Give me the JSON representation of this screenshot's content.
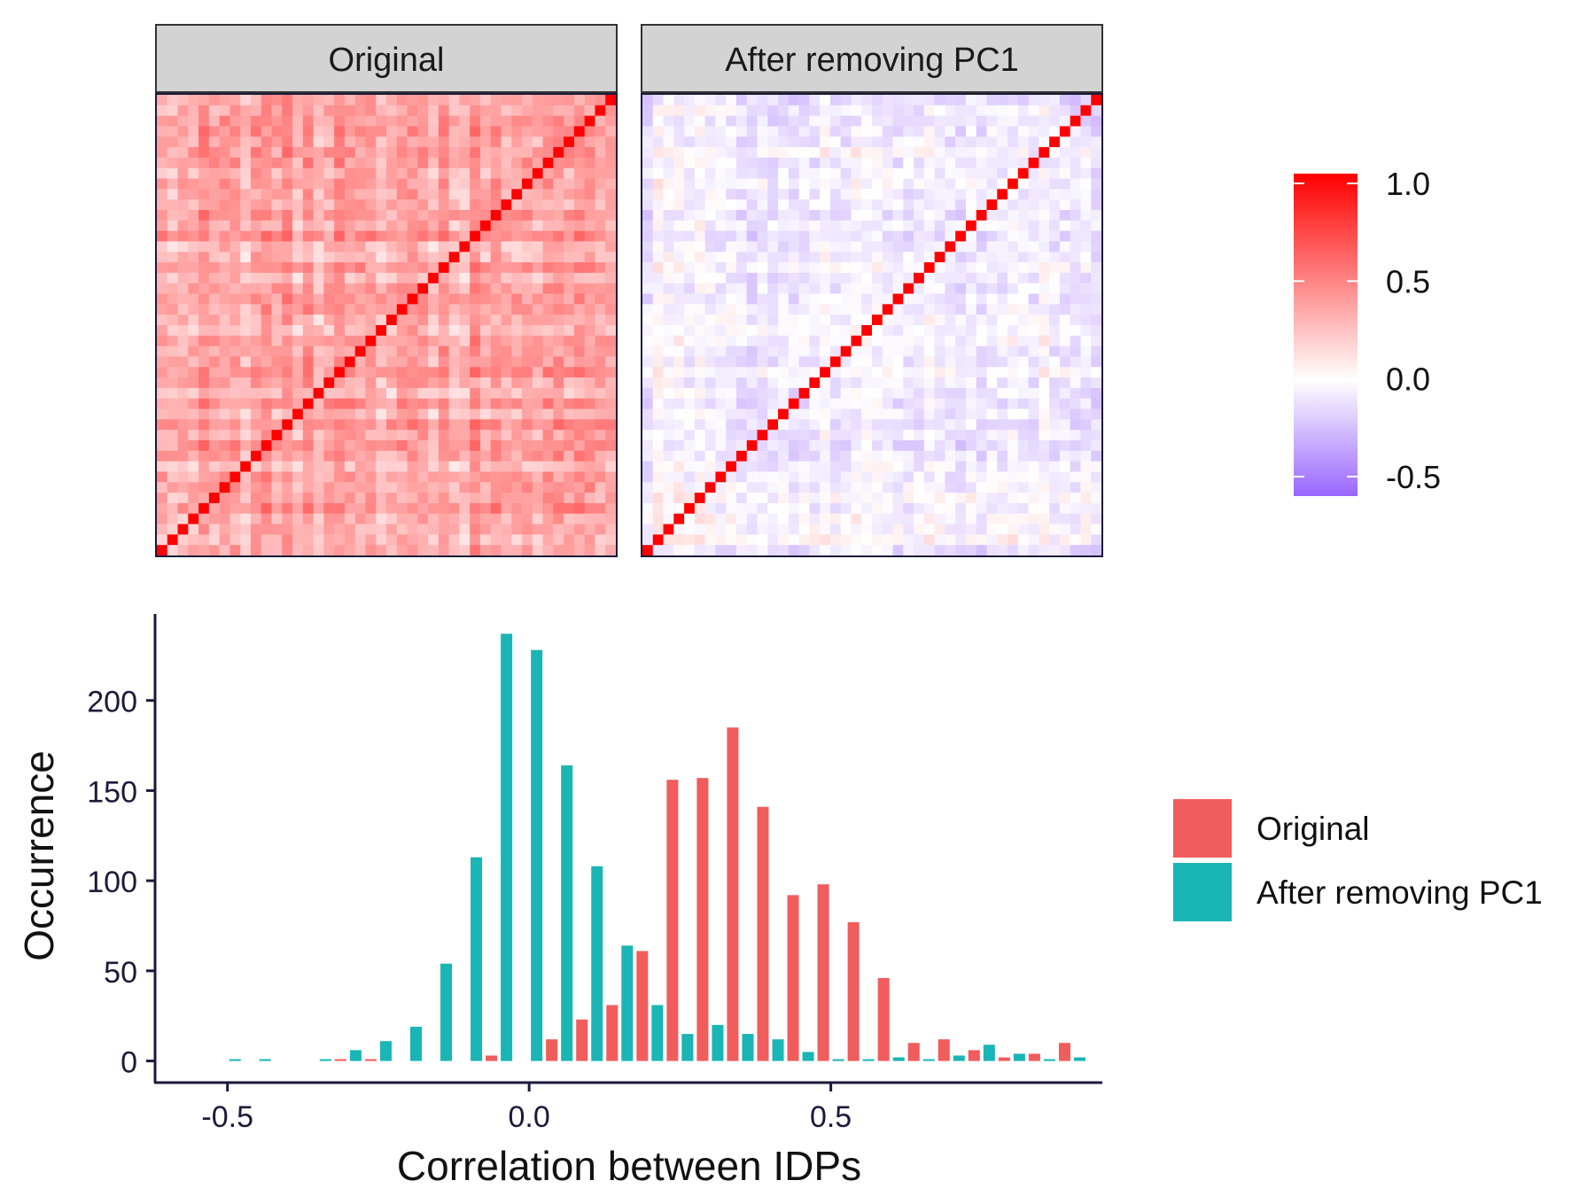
{
  "chart_data": [
    {
      "type": "heatmap",
      "panels": [
        {
          "title": "Original",
          "offdiag_mean": 0.35,
          "offdiag_spread": 0.12,
          "diagonal": 1.0
        },
        {
          "title": "After removing PC1",
          "offdiag_mean": -0.05,
          "offdiag_spread": 0.1,
          "diagonal": 1.0
        }
      ],
      "size": 44,
      "colorbar": {
        "min": -0.6,
        "max": 1.05,
        "ticks": [
          1.0,
          0.5,
          0.0,
          -0.5
        ],
        "tick_labels": [
          "1.0",
          "0.5",
          "0.0",
          "-0.5"
        ],
        "low_color": "#9966ff",
        "mid_color": "#ffffff",
        "high_color": "#ff0000"
      }
    },
    {
      "type": "bar",
      "xlabel": "Correlation between IDPs",
      "ylabel": "Occurrence",
      "xlim": [
        -0.62,
        0.95
      ],
      "ylim": [
        -12,
        248
      ],
      "xticks": [
        -0.5,
        0.0,
        0.5
      ],
      "xtick_labels": [
        "-0.5",
        "0.0",
        "0.5"
      ],
      "yticks": [
        0,
        50,
        100,
        150,
        200
      ],
      "ytick_labels": [
        "0",
        "50",
        "100",
        "150",
        "200"
      ],
      "bin_width": 0.05,
      "series": [
        {
          "name": "Original",
          "color": "#f15c5c",
          "values": [
            {
              "x": -0.3,
              "y": 1
            },
            {
              "x": -0.25,
              "y": 1
            },
            {
              "x": -0.05,
              "y": 3
            },
            {
              "x": 0.05,
              "y": 12
            },
            {
              "x": 0.1,
              "y": 23
            },
            {
              "x": 0.15,
              "y": 31
            },
            {
              "x": 0.2,
              "y": 61
            },
            {
              "x": 0.25,
              "y": 156
            },
            {
              "x": 0.3,
              "y": 157
            },
            {
              "x": 0.35,
              "y": 185
            },
            {
              "x": 0.4,
              "y": 141
            },
            {
              "x": 0.45,
              "y": 92
            },
            {
              "x": 0.5,
              "y": 98
            },
            {
              "x": 0.55,
              "y": 77
            },
            {
              "x": 0.6,
              "y": 46
            },
            {
              "x": 0.65,
              "y": 10
            },
            {
              "x": 0.7,
              "y": 12
            },
            {
              "x": 0.75,
              "y": 6
            },
            {
              "x": 0.8,
              "y": 2
            },
            {
              "x": 0.85,
              "y": 4
            },
            {
              "x": 0.9,
              "y": 10
            }
          ]
        },
        {
          "name": "After removing PC1",
          "color": "#1ab5b5",
          "values": [
            {
              "x": -0.5,
              "y": 1
            },
            {
              "x": -0.45,
              "y": 1
            },
            {
              "x": -0.35,
              "y": 1
            },
            {
              "x": -0.3,
              "y": 6
            },
            {
              "x": -0.25,
              "y": 11
            },
            {
              "x": -0.2,
              "y": 19
            },
            {
              "x": -0.15,
              "y": 54
            },
            {
              "x": -0.1,
              "y": 113
            },
            {
              "x": -0.05,
              "y": 237
            },
            {
              "x": 0.0,
              "y": 228
            },
            {
              "x": 0.05,
              "y": 164
            },
            {
              "x": 0.1,
              "y": 108
            },
            {
              "x": 0.15,
              "y": 64
            },
            {
              "x": 0.2,
              "y": 31
            },
            {
              "x": 0.25,
              "y": 15
            },
            {
              "x": 0.3,
              "y": 20
            },
            {
              "x": 0.35,
              "y": 15
            },
            {
              "x": 0.4,
              "y": 12
            },
            {
              "x": 0.45,
              "y": 5
            },
            {
              "x": 0.5,
              "y": 1
            },
            {
              "x": 0.55,
              "y": 1
            },
            {
              "x": 0.6,
              "y": 2
            },
            {
              "x": 0.65,
              "y": 1
            },
            {
              "x": 0.7,
              "y": 3
            },
            {
              "x": 0.75,
              "y": 9
            },
            {
              "x": 0.8,
              "y": 4
            },
            {
              "x": 0.85,
              "y": 1
            },
            {
              "x": 0.9,
              "y": 2
            }
          ]
        }
      ],
      "legend": {
        "position": "right"
      }
    }
  ]
}
